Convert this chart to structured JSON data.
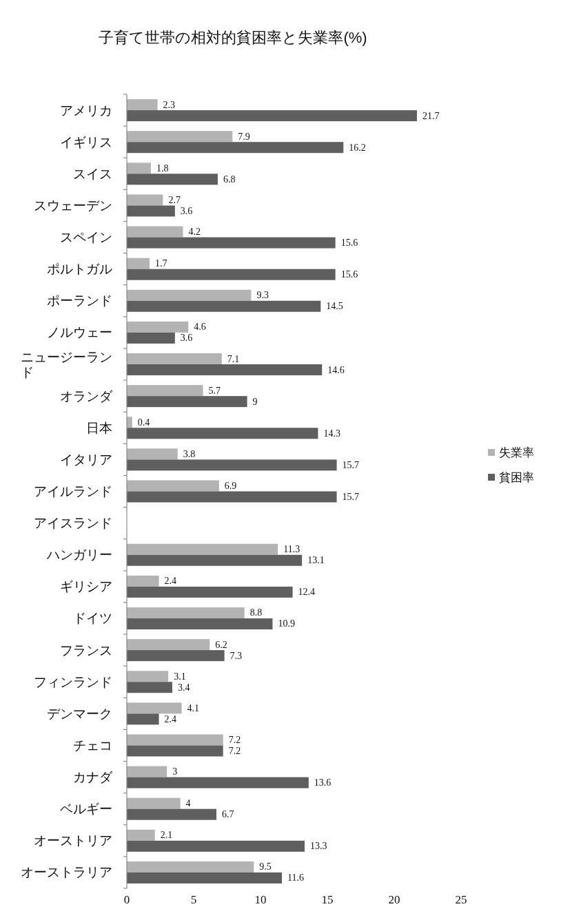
{
  "chart_data": {
    "type": "bar",
    "orientation": "horizontal",
    "title": "子育て世帯の相対的貧困率と失業率(%)",
    "categories": [
      "アメリカ",
      "イギリス",
      "スイス",
      "スウェーデン",
      "スペイン",
      "ポルトガル",
      "ポーランド",
      "ノルウェー",
      "ニュージーランド",
      "オランダ",
      "日本",
      "イタリア",
      "アイルランド",
      "アイスランド",
      "ハンガリー",
      "ギリシア",
      "ドイツ",
      "フランス",
      "フィンランド",
      "デンマーク",
      "チェコ",
      "カナダ",
      "ベルギー",
      "オーストリア",
      "オーストラリア"
    ],
    "series": [
      {
        "name": "失業率",
        "color": "#b3b3b3",
        "values": [
          2.3,
          7.9,
          1.8,
          2.7,
          4.2,
          1.7,
          9.3,
          4.6,
          7.1,
          5.7,
          0.4,
          3.8,
          6.9,
          null,
          11.3,
          2.4,
          8.8,
          6.2,
          3.1,
          4.1,
          7.2,
          3,
          4,
          2.1,
          9.5
        ]
      },
      {
        "name": "貧困率",
        "color": "#5f5f5f",
        "values": [
          21.7,
          16.2,
          6.8,
          3.6,
          15.6,
          15.6,
          14.5,
          3.6,
          14.6,
          9,
          14.3,
          15.7,
          15.7,
          null,
          13.1,
          12.4,
          10.9,
          7.3,
          3.4,
          2.4,
          7.2,
          13.6,
          6.7,
          13.3,
          11.6
        ]
      }
    ],
    "xlim": [
      0,
      25
    ],
    "xticks": [
      0,
      5,
      10,
      15,
      20,
      25
    ],
    "data_labels": true,
    "legend": "right"
  }
}
